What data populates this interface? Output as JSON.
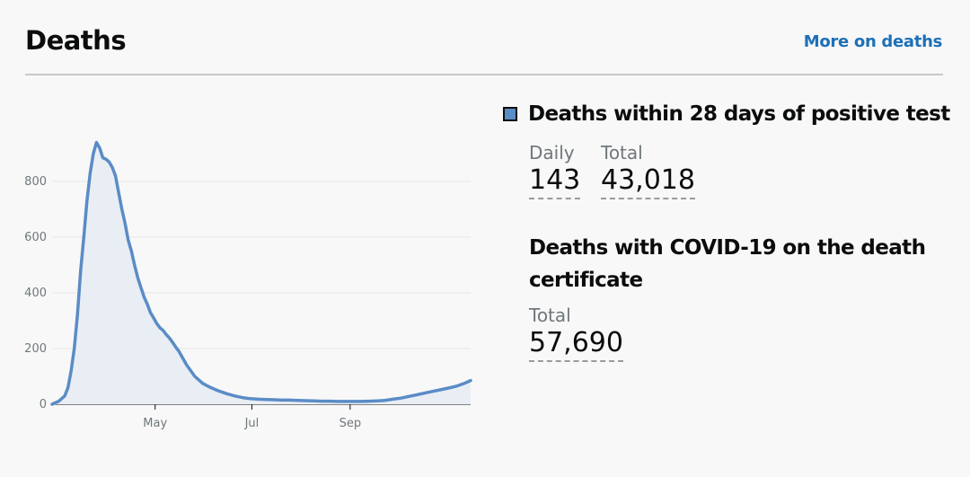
{
  "header": {
    "title": "Deaths",
    "more_link": "More on deaths"
  },
  "metrics": {
    "primary": {
      "title": "Deaths within 28 days of positive test",
      "daily_label": "Daily",
      "daily_value": "143",
      "total_label": "Total",
      "total_value": "43,018",
      "swatch_color": "#5a8cc6"
    },
    "secondary": {
      "title": "Deaths with COVID-19 on the death certificate",
      "total_label": "Total",
      "total_value": "57,690"
    }
  },
  "chart_data": {
    "type": "area",
    "series": [
      {
        "color": "#5a8cc6",
        "x": [
          0,
          2,
          4,
          6,
          8,
          10,
          12,
          14,
          16,
          18,
          20,
          22,
          24,
          26,
          28,
          30,
          32,
          34,
          36,
          38,
          40,
          42,
          44,
          46,
          48,
          50,
          52,
          54,
          56,
          58,
          60,
          62,
          64,
          66,
          68,
          70,
          72,
          74,
          76,
          78,
          80,
          85,
          90,
          95,
          100,
          105,
          110,
          115,
          120,
          125,
          130,
          135,
          140,
          145,
          150,
          155,
          160,
          165,
          170,
          175,
          180,
          185,
          190,
          195,
          200,
          205,
          210,
          215,
          220,
          225,
          230,
          235,
          240,
          245,
          250,
          255,
          260,
          264
        ],
        "values": [
          0,
          5,
          10,
          20,
          30,
          60,
          120,
          200,
          320,
          480,
          600,
          730,
          830,
          900,
          940,
          920,
          885,
          880,
          870,
          850,
          820,
          760,
          700,
          650,
          590,
          550,
          500,
          455,
          420,
          385,
          360,
          330,
          310,
          290,
          275,
          265,
          250,
          238,
          222,
          205,
          190,
          140,
          100,
          75,
          60,
          48,
          38,
          30,
          24,
          20,
          18,
          17,
          16,
          15,
          15,
          14,
          13,
          12,
          11,
          11,
          10,
          10,
          10,
          10,
          11,
          12,
          14,
          18,
          22,
          28,
          34,
          40,
          46,
          52,
          58,
          65,
          75,
          85
        ]
      }
    ],
    "x_ticks": [
      {
        "label": "May",
        "x": 65
      },
      {
        "label": "Jul",
        "x": 126
      },
      {
        "label": "Sep",
        "x": 188
      }
    ],
    "y_ticks": [
      0,
      200,
      400,
      600,
      800
    ],
    "ylim": [
      0,
      1000
    ],
    "xlim": [
      0,
      264
    ],
    "grid": true
  }
}
